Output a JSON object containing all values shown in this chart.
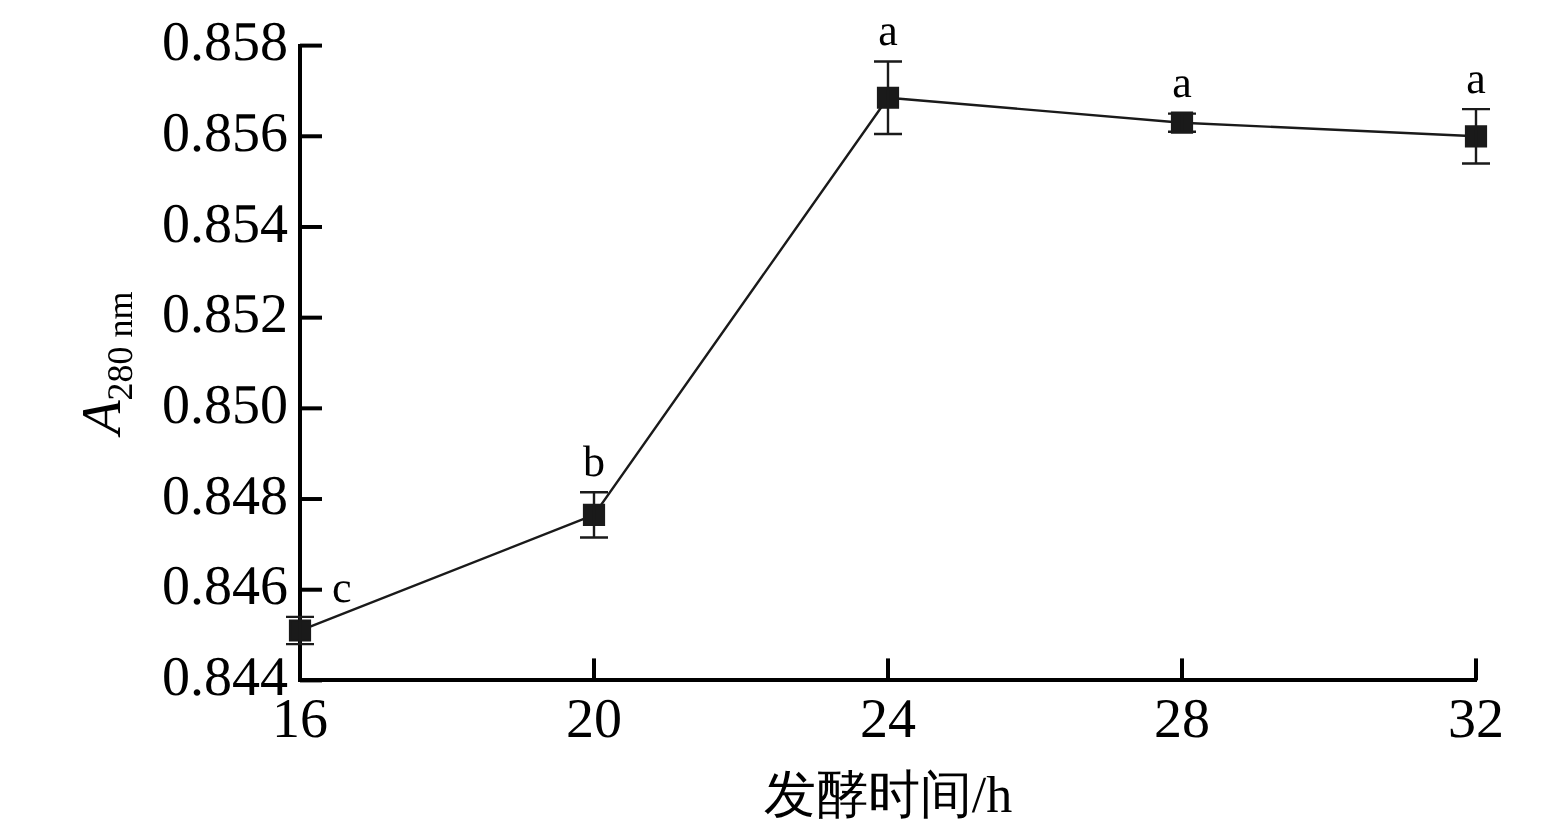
{
  "chart_data": {
    "type": "line",
    "xlabel": "发酵时间/h",
    "ylabel": "A$_{280 nm}$",
    "x": [
      16,
      20,
      24,
      28,
      32
    ],
    "series": [
      {
        "color": "#1a1a1a",
        "values": [
          0.8451,
          0.84765,
          0.85685,
          0.8563,
          0.856
        ],
        "errors": [
          0.0003,
          0.0005,
          0.0008,
          0.0002,
          0.0006
        ]
      }
    ],
    "xlim": [
      16,
      32
    ],
    "xticks": [
      16,
      20,
      24,
      28,
      32
    ],
    "ylim": [
      0.844,
      0.858
    ],
    "yticks": [
      0.844,
      0.846,
      0.848,
      {
        "value": 0.85,
        "label": "0.850"
      },
      0.852,
      0.854,
      0.856,
      0.858
    ],
    "annotations": [
      {
        "text": "c",
        "x": 16,
        "y": 0.8451
      },
      {
        "text": "b",
        "x": 20,
        "y": 0.84765
      },
      {
        "text": "a",
        "x": 24,
        "y": 0.85685
      },
      {
        "text": "a",
        "x": 28,
        "y": 0.8563
      },
      {
        "text": "a",
        "x": 32,
        "y": 0.856
      }
    ],
    "grid": false,
    "legend": false,
    "marker": "square",
    "line_style": "solid"
  }
}
